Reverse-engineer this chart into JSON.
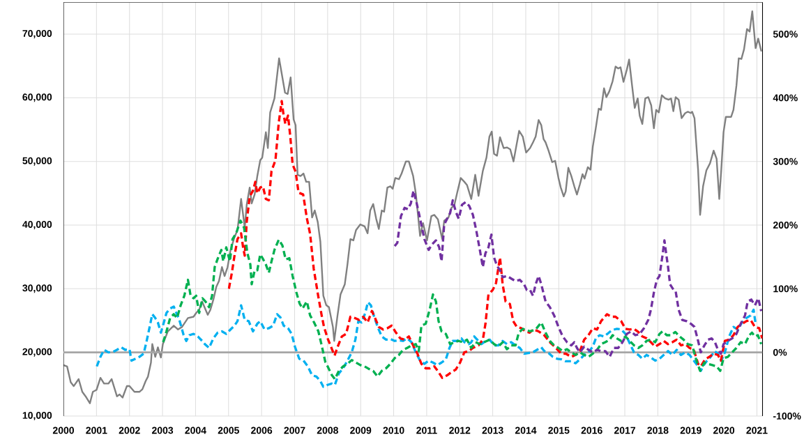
{
  "chart_data": {
    "type": "line",
    "xlim": [
      2000,
      2021.17
    ],
    "ylim": [
      10000,
      75000
    ],
    "y2lim": [
      -100,
      550
    ],
    "xticks": [
      2000,
      2001,
      2002,
      2003,
      2004,
      2005,
      2006,
      2007,
      2008,
      2009,
      2010,
      2011,
      2012,
      2013,
      2014,
      2015,
      2016,
      2017,
      2018,
      2019,
      2020,
      2021
    ],
    "yticks": [
      {
        "value": 10000,
        "label": "10,000"
      },
      {
        "value": 20000,
        "label": "20,000"
      },
      {
        "value": 30000,
        "label": "30,000"
      },
      {
        "value": 40000,
        "label": "40,000"
      },
      {
        "value": 50000,
        "label": "50,000"
      },
      {
        "value": 60000,
        "label": "60,000"
      },
      {
        "value": 70000,
        "label": "70,000"
      }
    ],
    "y2ticks": [
      {
        "value": -100,
        "label": "-100%"
      },
      {
        "value": 0,
        "label": "0%"
      },
      {
        "value": 100,
        "label": "100%"
      },
      {
        "value": 200,
        "label": "200%"
      },
      {
        "value": 300,
        "label": "300%"
      },
      {
        "value": 400,
        "label": "400%"
      },
      {
        "value": 500,
        "label": "500%"
      }
    ],
    "grid": true,
    "ref_lines": [
      {
        "axis": "y2",
        "value": 0,
        "color": "#a6a6a6"
      }
    ],
    "series": [
      {
        "color": "#808080",
        "axis": "y",
        "line_style": "solid",
        "x": [
          2000.0,
          2000.11,
          2000.22,
          2000.31,
          2000.46,
          2000.57,
          2000.67,
          2000.8,
          2000.89,
          2001.0,
          2001.12,
          2001.23,
          2001.36,
          2001.46,
          2001.62,
          2001.7,
          2001.79,
          2001.92,
          2002.0,
          2002.15,
          2002.3,
          2002.39,
          2002.49,
          2002.56,
          2002.65,
          2002.69,
          2002.78,
          2002.86,
          2002.95,
          2003.01,
          2003.16,
          2003.34,
          2003.47,
          2003.59,
          2003.77,
          2003.94,
          2004.02,
          2004.11,
          2004.2,
          2004.28,
          2004.37,
          2004.45,
          2004.54,
          2004.63,
          2004.71,
          2004.8,
          2004.88,
          2004.97,
          2005.06,
          2005.18,
          2005.27,
          2005.38,
          2005.49,
          2005.55,
          2005.64,
          2005.7,
          2005.79,
          2005.87,
          2005.96,
          2006.02,
          2006.13,
          2006.19,
          2006.26,
          2006.39,
          2006.53,
          2006.71,
          2006.79,
          2006.88,
          2006.97,
          2007.03,
          2007.09,
          2007.18,
          2007.27,
          2007.35,
          2007.44,
          2007.53,
          2007.61,
          2007.7,
          2007.78,
          2007.87,
          2007.96,
          2008.04,
          2008.16,
          2008.2,
          2008.3,
          2008.39,
          2008.52,
          2008.6,
          2008.69,
          2008.78,
          2008.86,
          2008.99,
          2009.12,
          2009.21,
          2009.29,
          2009.38,
          2009.47,
          2009.55,
          2009.64,
          2009.71,
          2009.81,
          2009.9,
          2009.97,
          2010.05,
          2010.16,
          2010.24,
          2010.37,
          2010.46,
          2010.59,
          2010.67,
          2010.8,
          2010.89,
          2011.01,
          2011.14,
          2011.23,
          2011.34,
          2011.47,
          2011.53,
          2011.66,
          2011.75,
          2011.84,
          2011.92,
          2012.03,
          2012.14,
          2012.22,
          2012.35,
          2012.47,
          2012.57,
          2012.7,
          2012.81,
          2012.9,
          2012.97,
          2013.04,
          2013.13,
          2013.22,
          2013.33,
          2013.43,
          2013.53,
          2013.63,
          2013.71,
          2013.8,
          2013.91,
          2014.01,
          2014.13,
          2014.22,
          2014.3,
          2014.39,
          2014.47,
          2014.54,
          2014.6,
          2014.69,
          2014.8,
          2014.89,
          2014.99,
          2015.06,
          2015.15,
          2015.21,
          2015.29,
          2015.38,
          2015.47,
          2015.55,
          2015.64,
          2015.72,
          2015.78,
          2015.88,
          2015.96,
          2016.03,
          2016.12,
          2016.21,
          2016.28,
          2016.37,
          2016.44,
          2016.53,
          2016.63,
          2016.72,
          2016.8,
          2016.87,
          2016.96,
          2017.06,
          2017.13,
          2017.22,
          2017.3,
          2017.39,
          2017.45,
          2017.53,
          2017.62,
          2017.71,
          2017.8,
          2017.88,
          2017.95,
          2018.03,
          2018.12,
          2018.22,
          2018.33,
          2018.4,
          2018.47,
          2018.54,
          2018.63,
          2018.72,
          2018.83,
          2018.91,
          2019.0,
          2019.04,
          2019.11,
          2019.22,
          2019.28,
          2019.37,
          2019.47,
          2019.58,
          2019.69,
          2019.78,
          2019.86,
          2019.92,
          2019.99,
          2020.06,
          2020.15,
          2020.22,
          2020.29,
          2020.38,
          2020.45,
          2020.53,
          2020.61,
          2020.7,
          2020.78,
          2020.86,
          2020.96,
          2021.04,
          2021.13
        ],
        "values": [
          18000,
          17800,
          15300,
          14700,
          15800,
          13800,
          13100,
          12000,
          13800,
          14100,
          16000,
          15100,
          15100,
          15800,
          13100,
          13400,
          12900,
          14700,
          14700,
          13800,
          13800,
          14200,
          15500,
          16200,
          18400,
          21300,
          19300,
          20800,
          19200,
          21300,
          23300,
          24200,
          23600,
          24000,
          25400,
          25600,
          26200,
          26700,
          28000,
          27000,
          25900,
          26700,
          28300,
          30300,
          31200,
          33400,
          32000,
          33400,
          36100,
          38100,
          39200,
          44100,
          39600,
          43200,
          45900,
          43400,
          44800,
          47700,
          50200,
          50600,
          54600,
          52100,
          57700,
          59900,
          66200,
          60800,
          60600,
          63200,
          56600,
          55700,
          47900,
          47700,
          48100,
          46800,
          46800,
          41200,
          42300,
          40500,
          37400,
          28900,
          27400,
          27100,
          24000,
          21800,
          25800,
          29100,
          30700,
          33800,
          37800,
          37600,
          39200,
          40100,
          39800,
          38700,
          42300,
          43300,
          41000,
          39400,
          42300,
          42100,
          45900,
          46100,
          45700,
          47400,
          47200,
          48100,
          50000,
          50000,
          47700,
          45000,
          38300,
          40300,
          37600,
          41400,
          41600,
          40900,
          37800,
          40700,
          41200,
          42700,
          43200,
          45000,
          47400,
          46800,
          46300,
          44100,
          47900,
          44600,
          48500,
          50600,
          53900,
          54700,
          51200,
          50900,
          53800,
          52100,
          52200,
          51900,
          50000,
          52300,
          54800,
          53900,
          51400,
          52100,
          53000,
          53900,
          56500,
          55700,
          53500,
          53000,
          51700,
          49900,
          50100,
          47400,
          45900,
          44500,
          45300,
          49000,
          47700,
          46100,
          44800,
          46400,
          48000,
          47300,
          49100,
          48700,
          52300,
          55200,
          58300,
          58100,
          61500,
          60100,
          61000,
          62600,
          64900,
          64600,
          64800,
          62500,
          64400,
          66000,
          61900,
          58400,
          59900,
          57200,
          55900,
          59900,
          60100,
          58800,
          55200,
          58100,
          57700,
          60400,
          59900,
          59700,
          59900,
          57900,
          60100,
          59700,
          56800,
          57600,
          57800,
          57600,
          57800,
          56800,
          48600,
          41600,
          46100,
          48600,
          49700,
          51700,
          50400,
          44100,
          48600,
          54600,
          57000,
          57000,
          57000,
          58100,
          61900,
          66200,
          66100,
          67600,
          70800,
          70400,
          73600,
          67800,
          69300,
          67400
        ]
      },
      {
        "color": "#00b0f0",
        "axis": "y2",
        "line_style": "dashed",
        "x": [
          2001.01,
          2001.12,
          2001.23,
          2001.36,
          2001.51,
          2001.62,
          2001.75,
          2001.87,
          2002.0,
          2002.06,
          2002.18,
          2002.3,
          2002.43,
          2002.52,
          2002.61,
          2002.69,
          2002.78,
          2002.86,
          2002.95,
          2003.04,
          2003.12,
          2003.23,
          2003.34,
          2003.42,
          2003.51,
          2003.64,
          2003.72,
          2003.81,
          2003.94,
          2004.07,
          2004.2,
          2004.28,
          2004.41,
          2004.54,
          2004.67,
          2004.8,
          2004.93,
          2005.06,
          2005.18,
          2005.27,
          2005.38,
          2005.49,
          2005.61,
          2005.74,
          2005.87,
          2005.96,
          2006.09,
          2006.22,
          2006.35,
          2006.47,
          2006.57,
          2006.67,
          2006.8,
          2006.91,
          2007.01,
          2007.14,
          2007.27,
          2007.4,
          2007.53,
          2007.66,
          2007.78,
          2007.87,
          2008.0,
          2008.13,
          2008.22,
          2008.34,
          2008.47,
          2008.6,
          2008.73,
          2008.84,
          2008.93,
          2009.03,
          2009.14,
          2009.22,
          2009.31,
          2009.42,
          2009.53,
          2009.64,
          2009.77,
          2009.9,
          2010.03,
          2010.16,
          2010.28,
          2010.41,
          2010.54,
          2010.67,
          2010.8,
          2010.93,
          2011.06,
          2011.19,
          2011.32,
          2011.45,
          2011.58,
          2011.69,
          2011.79,
          2011.92,
          2012.05,
          2012.14,
          2012.27,
          2012.35,
          2012.44,
          2012.53,
          2012.66,
          2012.78,
          2012.91,
          2013.04,
          2013.17,
          2013.3,
          2013.43,
          2013.56,
          2013.69,
          2013.82,
          2013.95,
          2014.08,
          2014.21,
          2014.34,
          2014.47,
          2014.56,
          2014.69,
          2014.82,
          2014.95,
          2015.08,
          2015.21,
          2015.38,
          2015.51,
          2015.64,
          2015.77,
          2015.9,
          2016.03,
          2016.13,
          2016.24,
          2016.37,
          2016.47,
          2016.61,
          2016.76,
          2016.89,
          2017.02,
          2017.15,
          2017.28,
          2017.41,
          2017.53,
          2017.66,
          2017.79,
          2017.92,
          2018.05,
          2018.18,
          2018.31,
          2018.44,
          2018.57,
          2018.7,
          2018.83,
          2018.96,
          2019.09,
          2019.22,
          2019.3,
          2019.39,
          2019.49,
          2019.6,
          2019.72,
          2019.82,
          2019.92,
          2020.03,
          2020.16,
          2020.29,
          2020.42,
          2020.55,
          2020.68,
          2020.81,
          2020.9,
          2020.96
        ],
        "values": [
          -22,
          -7,
          4,
          0,
          1,
          4,
          8,
          4,
          5,
          -13,
          -10,
          -7,
          -2,
          18,
          40,
          60,
          54,
          47,
          31,
          47,
          62,
          69,
          72,
          62,
          51,
          27,
          18,
          27,
          29,
          25,
          18,
          13,
          7,
          22,
          31,
          33,
          29,
          36,
          42,
          49,
          74,
          51,
          49,
          33,
          45,
          49,
          36,
          38,
          42,
          60,
          55,
          42,
          38,
          29,
          9,
          -10,
          -13,
          -22,
          -36,
          -38,
          -45,
          -54,
          -51,
          -49,
          -51,
          -33,
          -25,
          -13,
          0,
          20,
          49,
          47,
          62,
          79,
          74,
          54,
          38,
          25,
          20,
          21,
          18,
          19,
          18,
          22,
          16,
          0,
          -13,
          -18,
          -13,
          -16,
          -20,
          -16,
          -11,
          7,
          18,
          18,
          22,
          16,
          13,
          16,
          25,
          20,
          13,
          18,
          20,
          11,
          11,
          18,
          13,
          16,
          11,
          7,
          -2,
          -1,
          0,
          4,
          8,
          2,
          -1,
          -7,
          -10,
          -11,
          -14,
          -14,
          -17,
          -11,
          -4,
          0,
          9,
          23,
          27,
          25,
          29,
          35,
          37,
          36,
          29,
          14,
          0,
          -4,
          -10,
          -4,
          -8,
          -13,
          -10,
          -4,
          2,
          -4,
          4,
          -4,
          0,
          -4,
          -13,
          -22,
          -29,
          -20,
          -13,
          -7,
          2,
          -2,
          -13,
          0,
          25,
          40,
          36,
          47,
          54,
          58,
          67,
          45
        ]
      },
      {
        "color": "#ff0000",
        "axis": "y2",
        "line_style": "dashed",
        "x": [
          2005.01,
          2005.1,
          2005.18,
          2005.27,
          2005.38,
          2005.44,
          2005.49,
          2005.55,
          2005.64,
          2005.74,
          2005.81,
          2005.87,
          2005.96,
          2006.04,
          2006.13,
          2006.22,
          2006.3,
          2006.42,
          2006.52,
          2006.61,
          2006.66,
          2006.72,
          2006.8,
          2006.87,
          2006.94,
          2007.03,
          2007.12,
          2007.26,
          2007.37,
          2007.47,
          2007.58,
          2007.72,
          2007.82,
          2007.89,
          2008.0,
          2008.14,
          2008.21,
          2008.32,
          2008.43,
          2008.56,
          2008.69,
          2008.82,
          2008.95,
          2009.08,
          2009.21,
          2009.34,
          2009.42,
          2009.55,
          2009.68,
          2009.81,
          2009.94,
          2010.07,
          2010.2,
          2010.33,
          2010.46,
          2010.59,
          2010.72,
          2010.84,
          2010.97,
          2011.1,
          2011.23,
          2011.36,
          2011.47,
          2011.62,
          2011.75,
          2011.88,
          2012.01,
          2012.14,
          2012.27,
          2012.4,
          2012.57,
          2012.7,
          2012.78,
          2012.87,
          2013.0,
          2013.1,
          2013.22,
          2013.3,
          2013.39,
          2013.52,
          2013.62,
          2013.73,
          2013.86,
          2013.99,
          2014.12,
          2014.22,
          2014.39,
          2014.56,
          2014.73,
          2014.91,
          2015.08,
          2015.21,
          2015.38,
          2015.51,
          2015.64,
          2015.77,
          2015.9,
          2016.03,
          2016.16,
          2016.28,
          2016.46,
          2016.59,
          2016.72,
          2016.89,
          2017.02,
          2017.15,
          2017.28,
          2017.41,
          2017.53,
          2017.66,
          2017.79,
          2017.92,
          2018.05,
          2018.18,
          2018.31,
          2018.44,
          2018.57,
          2018.7,
          2018.83,
          2018.96,
          2019.09,
          2019.22,
          2019.3,
          2019.43,
          2019.56,
          2019.69,
          2019.82,
          2019.91,
          2020.03,
          2020.16,
          2020.29,
          2020.42,
          2020.55,
          2020.68,
          2020.81,
          2020.94,
          2021.07,
          2021.16
        ],
        "values": [
          100,
          125,
          152,
          178,
          187,
          165,
          152,
          205,
          245,
          254,
          268,
          250,
          259,
          261,
          241,
          239,
          285,
          302,
          361,
          395,
          375,
          359,
          372,
          339,
          295,
          284,
          251,
          248,
          211,
          186,
          131,
          87,
          58,
          40,
          22,
          4,
          -5,
          11,
          25,
          29,
          56,
          54,
          51,
          56,
          47,
          65,
          56,
          40,
          36,
          38,
          42,
          31,
          22,
          20,
          25,
          11,
          -2,
          -18,
          -25,
          -25,
          -22,
          -31,
          -40,
          -36,
          -31,
          -27,
          -16,
          0,
          2,
          7,
          11,
          20,
          45,
          91,
          98,
          109,
          149,
          107,
          80,
          76,
          49,
          40,
          38,
          33,
          31,
          36,
          33,
          27,
          16,
          7,
          -2,
          -2,
          -7,
          -4,
          2,
          20,
          27,
          38,
          36,
          49,
          60,
          56,
          56,
          49,
          37,
          36,
          37,
          32,
          25,
          22,
          16,
          9,
          13,
          18,
          13,
          16,
          20,
          11,
          13,
          7,
          4,
          -18,
          -22,
          -11,
          -7,
          -2,
          -4,
          -13,
          18,
          20,
          27,
          40,
          45,
          49,
          51,
          40,
          38,
          22
        ]
      },
      {
        "color": "#00b050",
        "axis": "y2",
        "line_style": "dashed",
        "x": [
          2003.02,
          2003.12,
          2003.23,
          2003.34,
          2003.44,
          2003.55,
          2003.66,
          2003.77,
          2003.85,
          2003.94,
          2004.02,
          2004.11,
          2004.21,
          2004.3,
          2004.41,
          2004.5,
          2004.58,
          2004.67,
          2004.78,
          2004.84,
          2004.93,
          2005.04,
          2005.12,
          2005.23,
          2005.36,
          2005.47,
          2005.57,
          2005.66,
          2005.7,
          2005.79,
          2005.87,
          2005.96,
          2006.04,
          2006.13,
          2006.22,
          2006.3,
          2006.39,
          2006.52,
          2006.63,
          2006.73,
          2006.84,
          2006.94,
          2007.05,
          2007.15,
          2007.24,
          2007.37,
          2007.47,
          2007.59,
          2007.72,
          2007.82,
          2007.93,
          2008.0,
          2008.13,
          2008.22,
          2008.34,
          2008.47,
          2008.6,
          2008.73,
          2008.86,
          2008.99,
          2009.12,
          2009.25,
          2009.38,
          2009.51,
          2009.64,
          2009.77,
          2009.9,
          2010.03,
          2010.16,
          2010.28,
          2010.41,
          2010.54,
          2010.67,
          2010.76,
          2010.84,
          2010.97,
          2011.09,
          2011.19,
          2011.28,
          2011.36,
          2011.45,
          2011.58,
          2011.71,
          2011.84,
          2011.97,
          2012.09,
          2012.22,
          2012.35,
          2012.48,
          2012.61,
          2012.74,
          2012.91,
          2013.04,
          2013.17,
          2013.3,
          2013.43,
          2013.56,
          2013.69,
          2013.79,
          2013.91,
          2014.03,
          2014.13,
          2014.3,
          2014.47,
          2014.6,
          2014.73,
          2014.86,
          2014.99,
          2015.12,
          2015.25,
          2015.38,
          2015.51,
          2015.64,
          2015.77,
          2015.9,
          2016.03,
          2016.16,
          2016.28,
          2016.41,
          2016.54,
          2016.63,
          2016.76,
          2016.89,
          2017.02,
          2017.15,
          2017.28,
          2017.41,
          2017.53,
          2017.66,
          2017.79,
          2017.92,
          2018.05,
          2018.14,
          2018.27,
          2018.4,
          2018.53,
          2018.66,
          2018.78,
          2018.91,
          2019.04,
          2019.17,
          2019.28,
          2019.41,
          2019.52,
          2019.65,
          2019.78,
          2019.89,
          2019.99,
          2020.12,
          2020.25,
          2020.38,
          2020.51,
          2020.64,
          2020.77,
          2020.85,
          2020.94,
          2021.03,
          2021.13
        ],
        "values": [
          16,
          33,
          54,
          60,
          54,
          74,
          89,
          114,
          89,
          85,
          89,
          62,
          85,
          80,
          71,
          89,
          134,
          147,
          161,
          143,
          165,
          143,
          178,
          187,
          207,
          196,
          156,
          138,
          107,
          129,
          129,
          154,
          147,
          138,
          125,
          143,
          161,
          177,
          168,
          146,
          148,
          120,
          95,
          77,
          69,
          80,
          58,
          47,
          33,
          11,
          -15,
          -22,
          -36,
          -42,
          -29,
          -22,
          -18,
          -12,
          -16,
          -20,
          -22,
          -26,
          -29,
          -38,
          -29,
          -25,
          -18,
          -9,
          -4,
          4,
          7,
          11,
          13,
          2,
          42,
          45,
          67,
          91,
          80,
          49,
          33,
          29,
          13,
          16,
          18,
          16,
          20,
          7,
          16,
          13,
          16,
          20,
          13,
          9,
          16,
          5,
          11,
          11,
          31,
          37,
          35,
          33,
          36,
          47,
          31,
          18,
          11,
          7,
          2,
          5,
          0,
          -4,
          0,
          -4,
          -7,
          -2,
          4,
          13,
          16,
          20,
          27,
          22,
          18,
          25,
          18,
          11,
          7,
          11,
          18,
          20,
          16,
          29,
          33,
          27,
          27,
          32,
          25,
          20,
          13,
          11,
          -13,
          -29,
          -16,
          -18,
          -20,
          -22,
          -29,
          -9,
          -7,
          0,
          7,
          16,
          13,
          27,
          31,
          25,
          27,
          13
        ]
      },
      {
        "color": "#7030a0",
        "axis": "y2",
        "line_style": "dashed",
        "x": [
          2010.03,
          2010.11,
          2010.22,
          2010.33,
          2010.43,
          2010.52,
          2010.6,
          2010.69,
          2010.8,
          2010.93,
          2011.06,
          2011.15,
          2011.28,
          2011.38,
          2011.45,
          2011.53,
          2011.62,
          2011.71,
          2011.79,
          2011.88,
          2011.97,
          2012.07,
          2012.18,
          2012.29,
          2012.4,
          2012.5,
          2012.61,
          2012.7,
          2012.78,
          2012.87,
          2012.96,
          2013.04,
          2013.13,
          2013.22,
          2013.3,
          2013.43,
          2013.56,
          2013.69,
          2013.82,
          2013.95,
          2014.03,
          2014.13,
          2014.22,
          2014.3,
          2014.39,
          2014.47,
          2014.6,
          2014.73,
          2014.86,
          2014.99,
          2015.12,
          2015.25,
          2015.38,
          2015.47,
          2015.55,
          2015.64,
          2015.77,
          2015.9,
          2016.03,
          2016.16,
          2016.28,
          2016.41,
          2016.54,
          2016.67,
          2016.8,
          2016.93,
          2017.06,
          2017.19,
          2017.32,
          2017.45,
          2017.58,
          2017.71,
          2017.79,
          2017.88,
          2017.97,
          2018.05,
          2018.14,
          2018.2,
          2018.25,
          2018.31,
          2018.37,
          2018.48,
          2018.54,
          2018.63,
          2018.74,
          2018.87,
          2019.0,
          2019.11,
          2019.22,
          2019.3,
          2019.41,
          2019.52,
          2019.63,
          2019.73,
          2019.82,
          2019.91,
          2019.99,
          2020.12,
          2020.25,
          2020.38,
          2020.51,
          2020.64,
          2020.72,
          2020.83,
          2020.94,
          2021.04,
          2021.13
        ],
        "values": [
          167,
          172,
          214,
          227,
          225,
          234,
          254,
          236,
          210,
          178,
          161,
          169,
          176,
          165,
          143,
          201,
          210,
          219,
          239,
          221,
          210,
          232,
          236,
          230,
          216,
          192,
          161,
          134,
          156,
          165,
          185,
          149,
          136,
          129,
          118,
          120,
          116,
          112,
          114,
          107,
          98,
          98,
          89,
          107,
          120,
          107,
          80,
          71,
          58,
          40,
          25,
          16,
          11,
          16,
          7,
          0,
          9,
          4,
          0,
          4,
          2,
          2,
          -7,
          7,
          7,
          16,
          29,
          33,
          27,
          29,
          38,
          51,
          67,
          94,
          114,
          120,
          152,
          176,
          156,
          134,
          107,
          98,
          96,
          67,
          51,
          49,
          45,
          40,
          18,
          0,
          11,
          20,
          22,
          16,
          4,
          -2,
          13,
          18,
          22,
          29,
          45,
          58,
          80,
          83,
          74,
          85,
          65
        ]
      }
    ]
  }
}
